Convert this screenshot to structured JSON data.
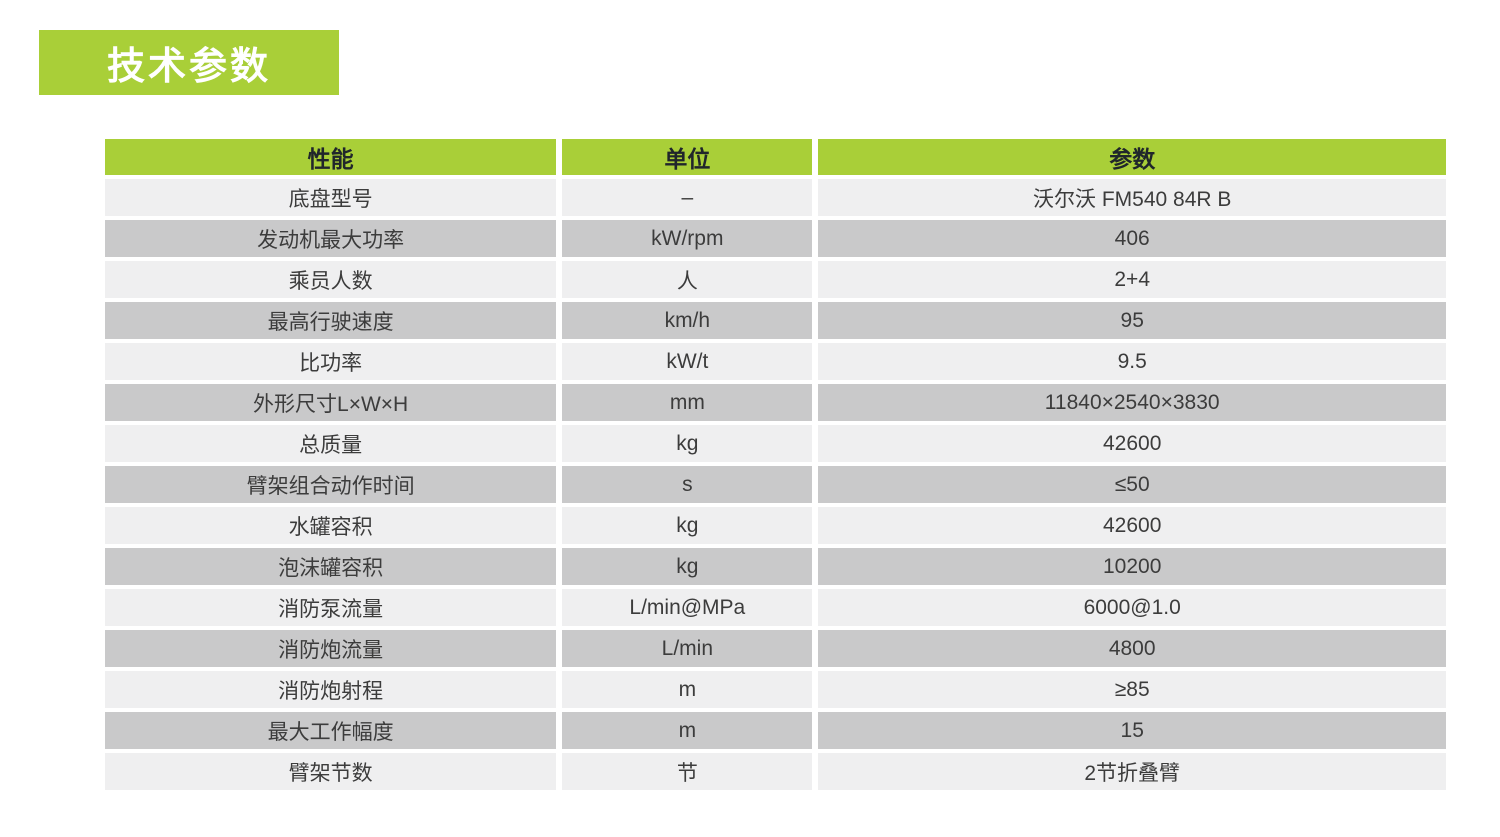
{
  "page_title": {
    "label": "技术参数"
  },
  "colors": {
    "green": "#a9cf38",
    "row_light": "#efeff0",
    "row_dark": "#c9c9ca",
    "header_text": "#20262b",
    "body_text": "#3c3c3c",
    "badge_text": "#ffffff"
  },
  "table": {
    "headers": [
      "性能",
      "单位",
      "参数"
    ],
    "rows": [
      {
        "property": "底盘型号",
        "unit": "–",
        "value": "沃尔沃 FM540 84R B"
      },
      {
        "property": "发动机最大功率",
        "unit": "kW/rpm",
        "value": "406"
      },
      {
        "property": "乘员人数",
        "unit": "人",
        "value": "2+4"
      },
      {
        "property": "最高行驶速度",
        "unit": "km/h",
        "value": "95"
      },
      {
        "property": "比功率",
        "unit": "kW/t",
        "value": "9.5"
      },
      {
        "property": "外形尺寸L×W×H",
        "unit": "mm",
        "value": "11840×2540×3830"
      },
      {
        "property": "总质量",
        "unit": "kg",
        "value": "42600"
      },
      {
        "property": "臂架组合动作时间",
        "unit": "s",
        "value": "≤50"
      },
      {
        "property": "水罐容积",
        "unit": "kg",
        "value": "42600"
      },
      {
        "property": "泡沫罐容积",
        "unit": "kg",
        "value": "10200"
      },
      {
        "property": "消防泵流量",
        "unit": "L/min@MPa",
        "value": "6000@1.0"
      },
      {
        "property": "消防炮流量",
        "unit": "L/min",
        "value": "4800"
      },
      {
        "property": "消防炮射程",
        "unit": "m",
        "value": "≥85"
      },
      {
        "property": "最大工作幅度",
        "unit": "m",
        "value": "15"
      },
      {
        "property": "臂架节数",
        "unit": "节",
        "value": "2节折叠臂"
      }
    ]
  }
}
